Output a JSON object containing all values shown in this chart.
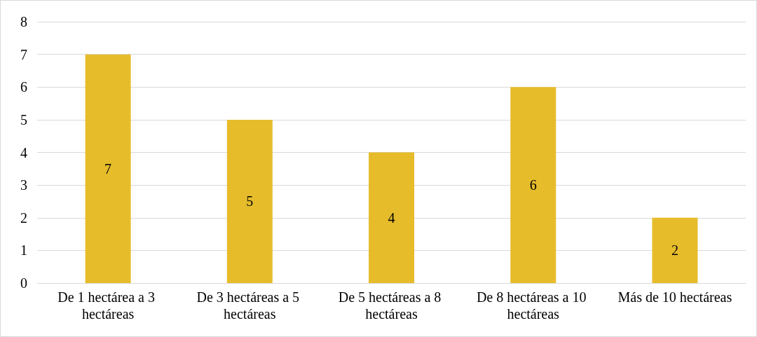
{
  "chart_data": {
    "type": "bar",
    "categories": [
      "De 1 hectárea a 3 hectáreas",
      "De 3 hectáreas a 5 hectáreas",
      "De 5 hectáreas a 8 hectáreas",
      "De 8 hectáreas a 10 hectáreas",
      "Más de 10 hectáreas"
    ],
    "values": [
      7,
      5,
      4,
      6,
      2
    ],
    "color": "#e6bc2b",
    "ylim": [
      0,
      8
    ],
    "yticks": [
      0,
      1,
      2,
      3,
      4,
      5,
      6,
      7,
      8
    ],
    "grid": "y",
    "data_labels": true
  }
}
